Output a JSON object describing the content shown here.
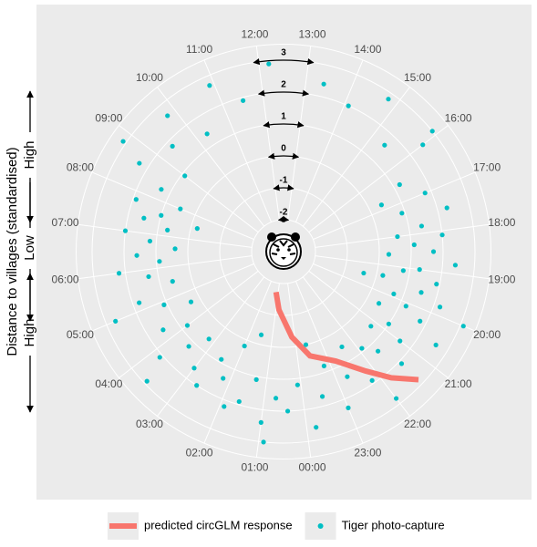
{
  "chart_data": {
    "type": "polar-scatter",
    "y_label": "Distance to villages (standardised)",
    "y_label_parts": [
      "High",
      "Low",
      "High"
    ],
    "xlim": [
      0,
      24
    ],
    "xticks": [
      {
        "value": 0,
        "label": "00:00"
      },
      {
        "value": 1,
        "label": "01:00"
      },
      {
        "value": 2,
        "label": "02:00"
      },
      {
        "value": 3,
        "label": "03:00"
      },
      {
        "value": 4,
        "label": "04:00"
      },
      {
        "value": 5,
        "label": "05:00"
      },
      {
        "value": 6,
        "label": "06:00"
      },
      {
        "value": 7,
        "label": "07:00"
      },
      {
        "value": 8,
        "label": "08:00"
      },
      {
        "value": 9,
        "label": "09:00"
      },
      {
        "value": 10,
        "label": "10:00"
      },
      {
        "value": 11,
        "label": "11:00"
      },
      {
        "value": 12,
        "label": "12:00"
      },
      {
        "value": 13,
        "label": "13:00"
      },
      {
        "value": 14,
        "label": "14:00"
      },
      {
        "value": 15,
        "label": "15:00"
      },
      {
        "value": 16,
        "label": "16:00"
      },
      {
        "value": 17,
        "label": "17:00"
      },
      {
        "value": 18,
        "label": "18:00"
      },
      {
        "value": 19,
        "label": "19:00"
      },
      {
        "value": 20,
        "label": "20:00"
      },
      {
        "value": 21,
        "label": "21:00"
      },
      {
        "value": 22,
        "label": "22:00"
      },
      {
        "value": 23,
        "label": "23:00"
      }
    ],
    "ylim": [
      -3,
      3.5
    ],
    "yticks": [
      -2,
      -1,
      0,
      1,
      2,
      3
    ],
    "grid": true,
    "series": [
      {
        "name": "predicted circGLM response",
        "mark": "line",
        "color": "#f8766d",
        "x": [
          1.2,
          0.8,
          0.13,
          23.55,
          22.8,
          22.2,
          21.8,
          21.4
        ],
        "values": [
          -1.71,
          -1.17,
          -0.31,
          0.37,
          0.8,
          1.54,
          2.2,
          2.83
        ]
      },
      {
        "name": "Tiger photo-capture",
        "mark": "point",
        "color": "#00bfc4",
        "x": [
          17.0,
          17.3,
          17.5,
          17.8,
          18.0,
          18.1,
          18.3,
          18.5,
          18.6,
          18.8,
          19.0,
          19.1,
          19.3,
          19.4,
          19.6,
          19.8,
          19.9,
          20.1,
          20.3,
          20.4,
          20.6,
          20.8,
          21.0,
          21.2,
          21.4,
          21.6,
          21.9,
          22.2,
          22.4,
          22.7,
          23.0,
          23.2,
          23.5,
          23.8,
          0.1,
          0.4,
          0.7,
          1.0,
          1.3,
          1.6,
          1.9,
          2.2,
          2.5,
          2.7,
          3.0,
          3.2,
          3.5,
          3.8,
          4.0,
          4.3,
          4.6,
          4.9,
          5.2,
          5.5,
          5.8,
          6.0,
          6.2,
          6.4,
          6.6,
          6.8,
          7.0,
          7.2,
          7.4,
          7.6,
          7.8,
          8.0,
          8.3,
          8.6,
          9.0,
          9.4,
          9.8,
          10.3,
          10.9,
          11.5,
          12.2,
          13.4,
          14.1,
          14.8,
          15.4,
          16.0,
          16.5,
          16.8,
          2.0,
          22.0,
          5.0,
          8.8,
          15.9,
          1.5,
          19.5,
          23.6,
          7.5,
          0.9,
          3.6,
          20.0
        ],
        "values": [
          1.8,
          0.9,
          2.3,
          1.4,
          0.6,
          2.0,
          1.1,
          1.7,
          0.3,
          2.4,
          1.3,
          0.8,
          1.9,
          0.2,
          1.5,
          2.2,
          0.7,
          1.2,
          1.8,
          0.4,
          2.6,
          1.0,
          1.6,
          0.6,
          2.1,
          1.3,
          0.9,
          1.9,
          0.5,
          1.4,
          2.3,
          0.8,
          1.7,
          2.6,
          1.2,
          2.0,
          1.6,
          2.4,
          1.1,
          1.9,
          2.2,
          1.4,
          0.9,
          2.0,
          1.6,
          0.6,
          1.2,
          2.1,
          0.8,
          1.5,
          0.3,
          1.1,
          1.8,
          0.6,
          1.3,
          2.2,
          0.9,
          1.6,
          0.4,
          1.2,
          2.0,
          0.7,
          1.5,
          1.0,
          1.9,
          0.5,
          1.3,
          2.3,
          0.9,
          1.8,
          2.6,
          1.4,
          2.7,
          1.9,
          2.9,
          2.4,
          2.0,
          2.8,
          1.6,
          2.5,
          1.2,
          0.4,
          0.2,
          2.8,
          2.7,
          3.1,
          3.0,
          -0.3,
          -0.4,
          0.0,
          -0.2,
          3.0,
          2.9,
          3.1
        ]
      }
    ]
  }
}
